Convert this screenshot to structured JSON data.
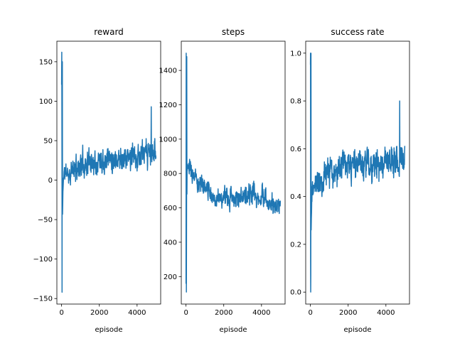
{
  "figure": {
    "background": "#ffffff",
    "line_color": "#1f77b4"
  },
  "chart_data": [
    {
      "type": "line",
      "title": "reward",
      "xlabel": "episode",
      "ylabel": "",
      "xlim": [
        -250,
        5250
      ],
      "ylim": [
        -157,
        176
      ],
      "xticks": [
        0,
        2000,
        4000
      ],
      "yticks": [
        -150,
        -100,
        -50,
        0,
        50,
        100,
        150
      ],
      "ytick_labels": [
        "−150",
        "−100",
        "−50",
        "0",
        "50",
        "100",
        "150"
      ],
      "grid": false,
      "series_color": "#1f77b4",
      "seed": 11,
      "envelope": {
        "x": [
          0,
          10,
          30,
          60,
          100,
          200,
          400,
          700,
          1000,
          1500,
          2000,
          2500,
          3000,
          3500,
          4000,
          4500,
          4800,
          5000
        ],
        "y": [
          120,
          40,
          -40,
          -30,
          8,
          10,
          8,
          14,
          20,
          23,
          27,
          30,
          28,
          28,
          30,
          32,
          34,
          34
        ],
        "noise": [
          20,
          110,
          100,
          20,
          12,
          10,
          12,
          14,
          16,
          16,
          16,
          16,
          16,
          16,
          16,
          16,
          18,
          16
        ]
      },
      "extremes_x": [
        10,
        25,
        40,
        4750
      ],
      "extremes_y": [
        162,
        -142,
        150,
        93
      ]
    },
    {
      "type": "line",
      "title": "steps",
      "xlabel": "episode",
      "ylabel": "",
      "xlim": [
        -250,
        5250
      ],
      "ylim": [
        40,
        1570
      ],
      "xticks": [
        0,
        2000,
        4000
      ],
      "yticks": [
        200,
        400,
        600,
        800,
        1000,
        1200,
        1400
      ],
      "ytick_labels": [
        "200",
        "400",
        "600",
        "800",
        "1000",
        "1200",
        "1400"
      ],
      "grid": false,
      "series_color": "#1f77b4",
      "seed": 23,
      "envelope": {
        "x": [
          0,
          10,
          30,
          60,
          100,
          300,
          600,
          1000,
          1500,
          2000,
          2500,
          3000,
          3500,
          4000,
          4500,
          5000
        ],
        "y": [
          300,
          800,
          700,
          830,
          830,
          800,
          760,
          720,
          660,
          650,
          660,
          670,
          680,
          650,
          630,
          600
        ],
        "noise": [
          150,
          500,
          400,
          80,
          60,
          60,
          60,
          55,
          50,
          55,
          55,
          60,
          60,
          60,
          55,
          40
        ]
      },
      "extremes_x": [
        10,
        20,
        40
      ],
      "extremes_y": [
        1500,
        110,
        1480
      ]
    },
    {
      "type": "line",
      "title": "success rate",
      "xlabel": "episode",
      "ylabel": "",
      "xlim": [
        -250,
        5250
      ],
      "ylim": [
        -0.05,
        1.05
      ],
      "xticks": [
        0,
        2000,
        4000
      ],
      "yticks": [
        0.0,
        0.2,
        0.4,
        0.6,
        0.8,
        1.0
      ],
      "ytick_labels": [
        "0.0",
        "0.2",
        "0.4",
        "0.6",
        "0.8",
        "1.0"
      ],
      "grid": false,
      "series_color": "#1f77b4",
      "seed": 37,
      "envelope": {
        "x": [
          0,
          10,
          30,
          60,
          100,
          300,
          600,
          1000,
          1500,
          2000,
          2500,
          3000,
          3500,
          4000,
          4500,
          5000
        ],
        "y": [
          0.9,
          0.3,
          0.4,
          0.35,
          0.42,
          0.46,
          0.48,
          0.5,
          0.52,
          0.52,
          0.53,
          0.54,
          0.53,
          0.55,
          0.55,
          0.56
        ],
        "noise": [
          0.1,
          0.5,
          0.4,
          0.06,
          0.05,
          0.05,
          0.06,
          0.06,
          0.06,
          0.06,
          0.06,
          0.06,
          0.06,
          0.06,
          0.06,
          0.06
        ]
      },
      "extremes_x": [
        5,
        15,
        30,
        40,
        4730
      ],
      "extremes_y": [
        1.0,
        0.0,
        1.0,
        0.26,
        0.8
      ]
    }
  ]
}
